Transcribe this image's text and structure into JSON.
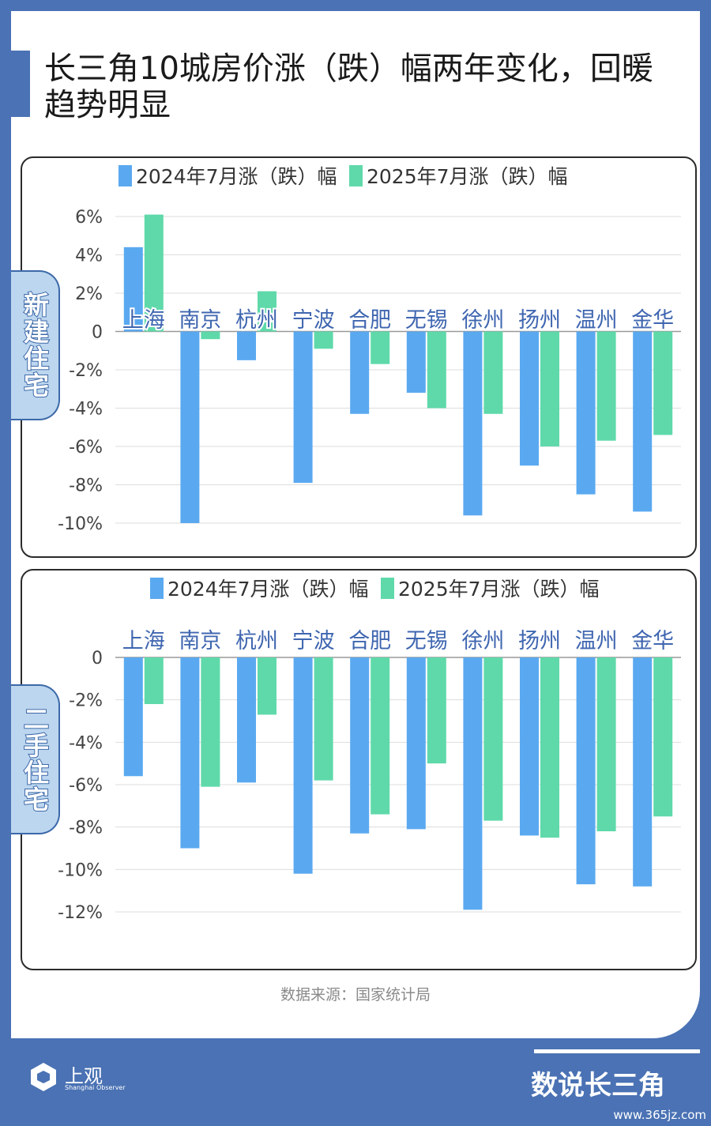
{
  "title": "长三角10城房价涨（跌）幅两年变化，回暖趋势明显",
  "source": "数据来源：国家统计局",
  "footer": {
    "logo_cn": "上观",
    "logo_en": "Shanghai Observer",
    "brand": "数说长三角",
    "watermark": "www.365jz.com"
  },
  "colors": {
    "series2024": "#5aa9f0",
    "series2025": "#5fd9aa",
    "accent": "#4a72b4"
  },
  "chart_data": [
    {
      "type": "bar",
      "panel_label": "新建住宅",
      "categories": [
        "上海",
        "南京",
        "杭州",
        "宁波",
        "合肥",
        "无锡",
        "徐州",
        "扬州",
        "温州",
        "金华"
      ],
      "series": [
        {
          "name": "2024年7月涨（跌）幅",
          "values": [
            4.4,
            -10.0,
            -1.5,
            -7.9,
            -4.3,
            -3.2,
            -9.6,
            -7.0,
            -8.5,
            -9.4
          ]
        },
        {
          "name": "2025年7月涨（跌）幅",
          "values": [
            6.1,
            -0.4,
            2.1,
            -0.9,
            -1.7,
            -4.0,
            -4.3,
            -6.0,
            -5.7,
            -5.4
          ]
        }
      ],
      "ylim": [
        -10,
        6
      ],
      "yticks": [
        6,
        4,
        2,
        0,
        -2,
        -4,
        -6,
        -8,
        -10
      ],
      "ytick_labels": [
        "6%",
        "4%",
        "2%",
        "0",
        "-2%",
        "-4%",
        "-6%",
        "-8%",
        "-10%"
      ],
      "category_labels_position": "top",
      "legend": "top",
      "grid": true
    },
    {
      "type": "bar",
      "panel_label": "二手住宅",
      "categories": [
        "上海",
        "南京",
        "杭州",
        "宁波",
        "合肥",
        "无锡",
        "徐州",
        "扬州",
        "温州",
        "金华"
      ],
      "series": [
        {
          "name": "2024年7月涨（跌）幅",
          "values": [
            -5.6,
            -9.0,
            -5.9,
            -10.2,
            -8.3,
            -8.1,
            -11.9,
            -8.4,
            -10.7,
            -10.8
          ]
        },
        {
          "name": "2025年7月涨（跌）幅",
          "values": [
            -2.2,
            -6.1,
            -2.7,
            -5.8,
            -7.4,
            -5.0,
            -7.7,
            -8.5,
            -8.2,
            -7.5
          ]
        }
      ],
      "ylim": [
        -12,
        0
      ],
      "yticks": [
        0,
        -2,
        -4,
        -6,
        -8,
        -10,
        -12
      ],
      "ytick_labels": [
        "0",
        "-2%",
        "-4%",
        "-6%",
        "-8%",
        "-10%",
        "-12%"
      ],
      "category_labels_position": "top",
      "legend": "top",
      "grid": true
    }
  ]
}
